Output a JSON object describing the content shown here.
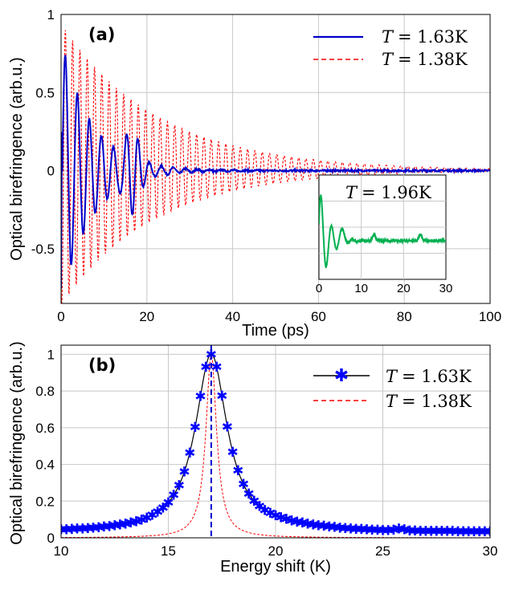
{
  "chart_data": [
    {
      "type": "line",
      "panel_label": "(a)",
      "xlabel": "Time (ps)",
      "ylabel": "Optical birefringence (arb.u.)",
      "xlim": [
        0,
        100
      ],
      "ylim": [
        -0.85,
        1.0
      ],
      "xticks": [
        "0",
        "20",
        "40",
        "60",
        "80",
        "100"
      ],
      "yticks": [
        "-0.5",
        "0",
        "0.5",
        "1"
      ],
      "grid": true,
      "legend_position": "top-right",
      "series": [
        {
          "name_var": "T",
          "name_value": "= 1.63K",
          "color": "#0000cc",
          "style": "solid",
          "model": {
            "amplitude": 0.85,
            "decay_ps": 7,
            "period_ps": 2.8
          },
          "features": [
            {
              "t": 1.0,
              "y": 1.0
            },
            {
              "t": 2.5,
              "y": -0.76
            },
            {
              "t": 4.0,
              "y": 0.58
            },
            {
              "t": 15.5,
              "y": -0.3
            },
            {
              "t": 18.0,
              "y": 0.18
            }
          ]
        },
        {
          "name_var": "T",
          "name_value": "= 1.38K",
          "color": "#ff0000",
          "style": "dashed",
          "model": {
            "amplitude": 0.9,
            "decay_ps": 22,
            "period_ps": 1.7
          },
          "features": [
            {
              "t": 1.0,
              "y": 0.95
            },
            {
              "t": 2.0,
              "y": -0.82
            },
            {
              "t": 30.0,
              "y": 0.25
            },
            {
              "t": 60.0,
              "y": 0.07
            }
          ]
        }
      ],
      "inset": {
        "label_var": "T",
        "label_value": "= 1.96K",
        "xlim": [
          0,
          30
        ],
        "xticks": [
          "0",
          "10",
          "20",
          "30"
        ],
        "series": [
          {
            "color": "#00b050",
            "model": {
              "amplitude": 0.9,
              "decay_ps": 2.2,
              "period_ps": 2.5
            }
          }
        ]
      }
    },
    {
      "type": "line",
      "panel_label": "(b)",
      "xlabel": "Energy shift (K)",
      "ylabel": "Optical birefringence (arb.u.)",
      "xlim": [
        10,
        30
      ],
      "ylim": [
        0,
        1.05
      ],
      "xticks": [
        "10",
        "15",
        "20",
        "25",
        "30"
      ],
      "yticks": [
        "0",
        "0.2",
        "0.4",
        "0.6",
        "0.8",
        "1"
      ],
      "grid": true,
      "legend_position": "top-right",
      "vertical_marker_x": 17.0,
      "series": [
        {
          "name_var": "T",
          "name_value": "= 1.63K",
          "color": "#000000",
          "marker_color": "#0000ff",
          "marker": "asterisk",
          "model": {
            "center": 17.0,
            "hwhm": 0.9,
            "background": 0.03
          }
        },
        {
          "name_var": "T",
          "name_value": "= 1.38K",
          "color": "#ff0000",
          "style": "dashed",
          "model": {
            "center": 17.0,
            "hwhm": 0.3
          }
        }
      ]
    }
  ]
}
